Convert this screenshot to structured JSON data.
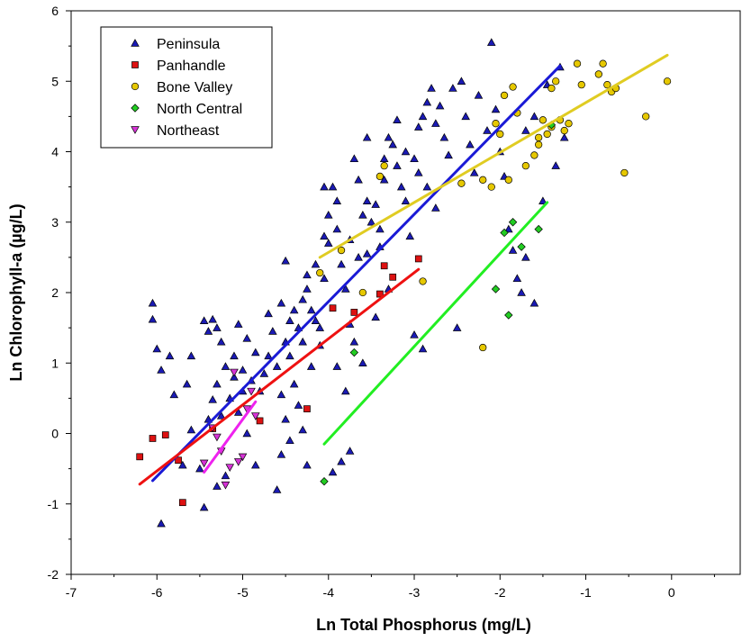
{
  "chart_data": {
    "type": "scatter",
    "title": "",
    "xlabel": "Ln Total Phosphorus (mg/L)",
    "ylabel": "Ln Chlorophyll-a (µg/L)",
    "xlim": [
      -7,
      0.8
    ],
    "ylim": [
      -2,
      6
    ],
    "xticks": [
      -7,
      -6,
      -5,
      -4,
      -3,
      -2,
      -1,
      0
    ],
    "yticks": [
      -2,
      -1,
      0,
      1,
      2,
      3,
      4,
      5,
      6
    ],
    "xtick_labels": [
      "-7",
      "-6",
      "-5",
      "-4",
      "-3",
      "-2",
      "-1",
      "0"
    ],
    "ytick_labels": [
      "-2",
      "-1",
      "0",
      "1",
      "2",
      "3",
      "4",
      "5",
      "6"
    ],
    "grid": false,
    "legend_position": "top-left",
    "series": [
      {
        "name": "Peninsula",
        "marker": "triangle-up",
        "color": "#1a1ab4",
        "points": [
          [
            -6.05,
            1.85
          ],
          [
            -6.05,
            1.62
          ],
          [
            -6.0,
            1.2
          ],
          [
            -5.95,
            0.9
          ],
          [
            -5.85,
            1.1
          ],
          [
            -5.8,
            0.55
          ],
          [
            -5.95,
            -1.28
          ],
          [
            -5.7,
            -0.45
          ],
          [
            -5.6,
            1.1
          ],
          [
            -5.65,
            0.7
          ],
          [
            -5.45,
            1.6
          ],
          [
            -5.4,
            1.45
          ],
          [
            -5.35,
            1.62
          ],
          [
            -5.3,
            1.5
          ],
          [
            -5.3,
            0.7
          ],
          [
            -5.25,
            1.3
          ],
          [
            -5.35,
            0.48
          ],
          [
            -5.45,
            -1.05
          ],
          [
            -5.3,
            -0.75
          ],
          [
            -5.2,
            -0.6
          ],
          [
            -5.05,
            1.55
          ],
          [
            -4.95,
            1.35
          ],
          [
            -5.1,
            1.1
          ],
          [
            -5.0,
            0.9
          ],
          [
            -5.15,
            0.5
          ],
          [
            -5.05,
            0.3
          ],
          [
            -4.95,
            0.0
          ],
          [
            -4.85,
            -0.45
          ],
          [
            -4.8,
            0.6
          ],
          [
            -4.75,
            0.85
          ],
          [
            -4.7,
            1.1
          ],
          [
            -4.65,
            1.45
          ],
          [
            -4.6,
            0.95
          ],
          [
            -4.55,
            0.55
          ],
          [
            -4.5,
            0.2
          ],
          [
            -4.45,
            -0.1
          ],
          [
            -4.6,
            -0.8
          ],
          [
            -4.55,
            -0.3
          ],
          [
            -4.5,
            1.3
          ],
          [
            -4.45,
            1.1
          ],
          [
            -4.4,
            0.7
          ],
          [
            -4.35,
            0.4
          ],
          [
            -4.3,
            0.05
          ],
          [
            -4.25,
            -0.45
          ],
          [
            -4.2,
            0.95
          ],
          [
            -4.3,
            1.9
          ],
          [
            -4.25,
            2.25
          ],
          [
            -4.15,
            1.6
          ],
          [
            -4.1,
            1.25
          ],
          [
            -4.05,
            2.2
          ],
          [
            -4.0,
            2.7
          ],
          [
            -3.95,
            3.5
          ],
          [
            -3.9,
            2.9
          ],
          [
            -3.85,
            2.4
          ],
          [
            -3.8,
            2.05
          ],
          [
            -3.75,
            1.55
          ],
          [
            -3.7,
            1.3
          ],
          [
            -3.65,
            2.5
          ],
          [
            -3.6,
            3.1
          ],
          [
            -3.55,
            3.3
          ],
          [
            -3.5,
            3.0
          ],
          [
            -3.45,
            3.25
          ],
          [
            -3.4,
            2.9
          ],
          [
            -3.35,
            3.6
          ],
          [
            -3.3,
            4.2
          ],
          [
            -3.25,
            4.1
          ],
          [
            -3.2,
            3.8
          ],
          [
            -3.15,
            3.5
          ],
          [
            -3.1,
            3.3
          ],
          [
            -3.05,
            2.8
          ],
          [
            -3.0,
            3.9
          ],
          [
            -2.95,
            4.35
          ],
          [
            -2.9,
            4.5
          ],
          [
            -2.85,
            4.7
          ],
          [
            -2.8,
            4.9
          ],
          [
            -2.75,
            4.4
          ],
          [
            -2.7,
            4.65
          ],
          [
            -2.65,
            4.2
          ],
          [
            -2.6,
            3.95
          ],
          [
            -2.55,
            4.9
          ],
          [
            -2.45,
            5.0
          ],
          [
            -2.4,
            4.5
          ],
          [
            -2.35,
            4.1
          ],
          [
            -2.3,
            3.7
          ],
          [
            -2.25,
            4.8
          ],
          [
            -2.15,
            4.3
          ],
          [
            -2.1,
            5.55
          ],
          [
            -2.05,
            4.6
          ],
          [
            -2.0,
            4.0
          ],
          [
            -1.95,
            3.65
          ],
          [
            -1.9,
            2.9
          ],
          [
            -1.85,
            2.6
          ],
          [
            -1.75,
            2.0
          ],
          [
            -1.7,
            2.5
          ],
          [
            -1.8,
            2.2
          ],
          [
            -1.6,
            1.85
          ],
          [
            -1.5,
            3.3
          ],
          [
            -1.35,
            3.8
          ],
          [
            -1.25,
            4.2
          ],
          [
            -1.3,
            5.2
          ],
          [
            -1.45,
            4.95
          ],
          [
            -1.6,
            4.5
          ],
          [
            -1.7,
            4.3
          ],
          [
            -2.5,
            1.5
          ],
          [
            -2.9,
            1.2
          ],
          [
            -3.0,
            1.4
          ],
          [
            -3.3,
            2.05
          ],
          [
            -3.45,
            1.65
          ],
          [
            -3.6,
            1.0
          ],
          [
            -3.8,
            0.6
          ],
          [
            -3.9,
            0.95
          ],
          [
            -4.1,
            1.5
          ],
          [
            -4.2,
            1.75
          ],
          [
            -4.15,
            2.4
          ],
          [
            -4.35,
            1.5
          ],
          [
            -4.4,
            1.75
          ],
          [
            -4.55,
            1.85
          ],
          [
            -4.7,
            1.7
          ],
          [
            -4.85,
            1.15
          ],
          [
            -4.9,
            0.75
          ],
          [
            -5.0,
            0.6
          ],
          [
            -5.1,
            0.8
          ],
          [
            -5.2,
            0.95
          ],
          [
            -5.25,
            0.25
          ],
          [
            -5.4,
            0.2
          ],
          [
            -5.5,
            -0.5
          ],
          [
            -5.6,
            0.05
          ],
          [
            -3.65,
            3.6
          ],
          [
            -3.7,
            3.9
          ],
          [
            -3.9,
            3.3
          ],
          [
            -4.0,
            3.1
          ],
          [
            -4.05,
            3.5
          ],
          [
            -3.75,
            2.75
          ],
          [
            -3.55,
            2.55
          ],
          [
            -3.4,
            2.65
          ],
          [
            -3.2,
            4.45
          ],
          [
            -3.1,
            4.0
          ],
          [
            -2.95,
            3.7
          ],
          [
            -2.85,
            3.5
          ],
          [
            -2.75,
            3.2
          ],
          [
            -3.95,
            -0.55
          ],
          [
            -3.75,
            -0.25
          ],
          [
            -3.85,
            -0.4
          ],
          [
            -4.05,
            2.8
          ],
          [
            -4.25,
            2.05
          ],
          [
            -4.5,
            2.45
          ],
          [
            -4.45,
            1.6
          ],
          [
            -4.3,
            1.3
          ],
          [
            -3.55,
            4.2
          ],
          [
            -3.35,
            3.9
          ]
        ]
      },
      {
        "name": "Panhandle",
        "marker": "square",
        "color": "#dd1111",
        "points": [
          [
            -6.2,
            -0.33
          ],
          [
            -6.05,
            -0.07
          ],
          [
            -5.9,
            -0.02
          ],
          [
            -5.75,
            -0.38
          ],
          [
            -5.7,
            -0.98
          ],
          [
            -5.35,
            0.07
          ],
          [
            -4.8,
            0.18
          ],
          [
            -4.25,
            0.35
          ],
          [
            -3.95,
            1.78
          ],
          [
            -3.7,
            1.72
          ],
          [
            -3.4,
            1.98
          ],
          [
            -3.35,
            2.38
          ],
          [
            -3.25,
            2.22
          ],
          [
            -2.95,
            2.48
          ]
        ]
      },
      {
        "name": "Bone Valley",
        "marker": "circle",
        "color": "#e6c800",
        "points": [
          [
            -4.1,
            2.28
          ],
          [
            -3.85,
            2.6
          ],
          [
            -3.6,
            2.0
          ],
          [
            -3.4,
            3.65
          ],
          [
            -3.35,
            3.8
          ],
          [
            -2.9,
            2.16
          ],
          [
            -2.45,
            3.55
          ],
          [
            -2.2,
            3.6
          ],
          [
            -2.1,
            3.5
          ],
          [
            -2.05,
            4.4
          ],
          [
            -2.0,
            4.25
          ],
          [
            -1.95,
            4.8
          ],
          [
            -1.85,
            4.92
          ],
          [
            -1.8,
            4.55
          ],
          [
            -1.6,
            3.95
          ],
          [
            -1.55,
            4.2
          ],
          [
            -1.45,
            4.25
          ],
          [
            -1.4,
            4.35
          ],
          [
            -1.35,
            5.0
          ],
          [
            -1.4,
            4.9
          ],
          [
            -1.3,
            4.45
          ],
          [
            -1.25,
            4.3
          ],
          [
            -1.2,
            4.4
          ],
          [
            -1.1,
            5.25
          ],
          [
            -1.05,
            4.95
          ],
          [
            -0.85,
            5.1
          ],
          [
            -0.8,
            5.25
          ],
          [
            -0.75,
            4.95
          ],
          [
            -0.7,
            4.85
          ],
          [
            -0.65,
            4.9
          ],
          [
            -0.55,
            3.7
          ],
          [
            -0.3,
            4.5
          ],
          [
            -0.05,
            5.0
          ],
          [
            -2.2,
            1.22
          ],
          [
            -1.7,
            3.8
          ],
          [
            -1.55,
            4.1
          ],
          [
            -1.9,
            3.6
          ],
          [
            -1.5,
            4.45
          ]
        ]
      },
      {
        "name": "North Central",
        "marker": "diamond",
        "color": "#22cc22",
        "points": [
          [
            -4.05,
            -0.68
          ],
          [
            -3.7,
            1.15
          ],
          [
            -2.05,
            2.05
          ],
          [
            -1.9,
            1.68
          ],
          [
            -1.95,
            2.85
          ],
          [
            -1.85,
            3.0
          ],
          [
            -1.75,
            2.65
          ],
          [
            -1.55,
            2.9
          ],
          [
            -1.4,
            4.38
          ]
        ]
      },
      {
        "name": "Northeast",
        "marker": "triangle-down",
        "color": "#d633d6",
        "points": [
          [
            -5.45,
            -0.42
          ],
          [
            -5.35,
            0.08
          ],
          [
            -5.25,
            -0.25
          ],
          [
            -5.2,
            -0.73
          ],
          [
            -5.15,
            -0.48
          ],
          [
            -5.1,
            0.87
          ],
          [
            -5.0,
            -0.33
          ],
          [
            -4.95,
            0.35
          ],
          [
            -4.85,
            0.25
          ],
          [
            -5.3,
            -0.05
          ],
          [
            -4.9,
            0.6
          ],
          [
            -5.05,
            -0.4
          ]
        ]
      }
    ],
    "fit_lines": [
      {
        "series": "Peninsula",
        "color": "#1a1ad6",
        "x": [
          -6.05,
          -1.3
        ],
        "y": [
          -0.67,
          5.22
        ]
      },
      {
        "series": "Panhandle",
        "color": "#ee1111",
        "x": [
          -6.2,
          -2.95
        ],
        "y": [
          -0.72,
          2.33
        ]
      },
      {
        "series": "Bone Valley",
        "color": "#e0cc22",
        "x": [
          -4.1,
          -0.05
        ],
        "y": [
          2.5,
          5.37
        ]
      },
      {
        "series": "North Central",
        "color": "#22ee22",
        "x": [
          -4.05,
          -1.45
        ],
        "y": [
          -0.15,
          3.28
        ]
      },
      {
        "series": "Northeast",
        "color": "#ee22ee",
        "x": [
          -5.45,
          -4.85
        ],
        "y": [
          -0.55,
          0.45
        ]
      }
    ]
  }
}
